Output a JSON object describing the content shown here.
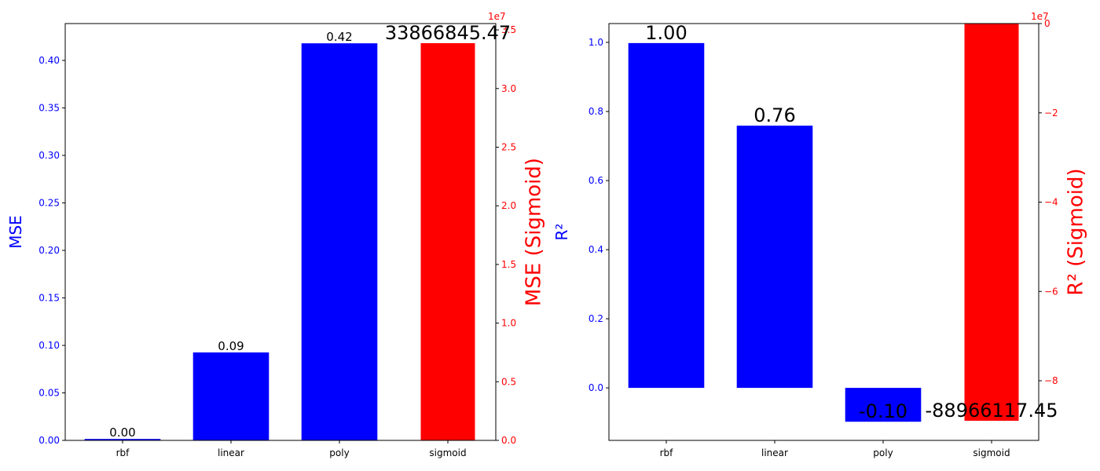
{
  "chart_data": [
    {
      "type": "bar",
      "categories": [
        "rbf",
        "linear",
        "poly",
        "sigmoid"
      ],
      "y_label": "MSE",
      "y2_label": "MSE (Sigmoid)",
      "y_color": "#0000ff",
      "y2_color": "#ff0000",
      "series": [
        {
          "color": "#0000ff",
          "values": [
            0.0015,
            0.0926,
            0.418,
            null
          ],
          "value_labels": [
            "0.00",
            "0.09",
            "0.42",
            null
          ]
        },
        {
          "color": "#ff0000",
          "axis": "y2",
          "values": [
            null,
            null,
            null,
            33866845.47
          ],
          "value_labels": [
            null,
            null,
            null,
            "33866845.47"
          ]
        }
      ],
      "ylim": [
        0,
        0.4388
      ],
      "yticks": [
        {
          "value": 0,
          "label": "0.00"
        },
        {
          "value": 0.05,
          "label": "0.05"
        },
        {
          "value": 0.1,
          "label": "0.10"
        },
        {
          "value": 0.15,
          "label": "0.15"
        },
        {
          "value": 0.2,
          "label": "0.20"
        },
        {
          "value": 0.25,
          "label": "0.25"
        },
        {
          "value": 0.3,
          "label": "0.30"
        },
        {
          "value": 0.35,
          "label": "0.35"
        },
        {
          "value": 0.4,
          "label": "0.40"
        }
      ],
      "y2lim": [
        0,
        35540000
      ],
      "y2ticks": [
        {
          "value": 0,
          "label": "0.0"
        },
        {
          "value": 5000000,
          "label": "0.5"
        },
        {
          "value": 10000000,
          "label": "1.0"
        },
        {
          "value": 15000000,
          "label": "1.5"
        },
        {
          "value": 20000000,
          "label": "2.0"
        },
        {
          "value": 25000000,
          "label": "2.5"
        },
        {
          "value": 30000000,
          "label": "3.0"
        },
        {
          "value": 35000000,
          "label": "3.5"
        }
      ],
      "y2_offset_label": "1e7"
    },
    {
      "type": "bar",
      "categories": [
        "rbf",
        "linear",
        "poly",
        "sigmoid"
      ],
      "y_label": "R²",
      "y2_label": "R² (Sigmoid)",
      "y_color": "#0000ff",
      "y2_color": "#ff0000",
      "series": [
        {
          "color": "#0000ff",
          "values": [
            0.998,
            0.759,
            -0.098,
            null
          ],
          "value_labels": [
            "1.00",
            "0.76",
            "-0.10",
            null
          ]
        },
        {
          "color": "#ff0000",
          "axis": "y2",
          "values": [
            null,
            null,
            null,
            -88966117.45
          ],
          "value_labels": [
            null,
            null,
            null,
            "-88966117.45"
          ]
        }
      ],
      "ylim": [
        -0.152,
        1.0545
      ],
      "yticks": [
        {
          "value": 0,
          "label": "0.0"
        },
        0.2,
        0.4,
        0.6,
        0.8,
        {
          "value": 1,
          "label": "1.0"
        }
      ],
      "y2lim": [
        -93360000,
        0
      ],
      "y2ticks": [
        {
          "value": -80000000,
          "label": "−8"
        },
        {
          "value": -60000000,
          "label": "−6"
        },
        {
          "value": -40000000,
          "label": "−4"
        },
        {
          "value": -20000000,
          "label": "−2"
        },
        0
      ],
      "y2_offset_label": "1e7"
    }
  ]
}
